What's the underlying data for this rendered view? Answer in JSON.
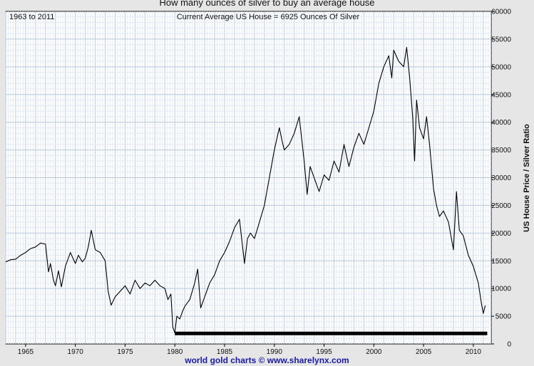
{
  "chart_data": {
    "type": "line",
    "title": "How many ounces of silver to buy an average house",
    "subtitle": "Current Average US House = 6925 Ounces Of Silver",
    "date_range_label": "1963 to 2011",
    "ylabel": "US House Price / Silver Ratio",
    "xlabel": "",
    "footer": "world gold charts © www.sharelynx.com",
    "xlim": [
      1963.0,
      2011.8
    ],
    "ylim": [
      0,
      60000
    ],
    "y_ticks": [
      0,
      5000,
      10000,
      15000,
      20000,
      25000,
      30000,
      35000,
      40000,
      45000,
      50000,
      55000,
      60000
    ],
    "x_ticks": [
      1965,
      1970,
      1975,
      1980,
      1985,
      1990,
      1995,
      2000,
      2005,
      2010
    ],
    "grid": true,
    "line_color": "#000000",
    "baseline": {
      "value": 1900,
      "x_start": 1980.0,
      "x_end": 2011.4,
      "color": "#000000"
    },
    "series": [
      {
        "x": [
          1963.0,
          1963.5,
          1964.0,
          1964.5,
          1965.0,
          1965.5,
          1966.0,
          1966.5,
          1967.0,
          1967.3,
          1967.5,
          1967.8,
          1968.0,
          1968.3,
          1968.6,
          1969.0,
          1969.5,
          1970.0,
          1970.3,
          1970.7,
          1971.0,
          1971.3,
          1971.6,
          1972.0,
          1972.5,
          1973.0,
          1973.3,
          1973.6,
          1974.0,
          1974.5,
          1975.0,
          1975.5,
          1976.0,
          1976.5,
          1977.0,
          1977.5,
          1978.0,
          1978.5,
          1979.0,
          1979.3,
          1979.6,
          1979.8,
          1980.0,
          1980.2,
          1980.5,
          1980.8,
          1981.0,
          1981.5,
          1982.0,
          1982.3,
          1982.6,
          1983.0,
          1983.5,
          1984.0,
          1984.5,
          1985.0,
          1985.5,
          1986.0,
          1986.5,
          1987.0,
          1987.3,
          1987.6,
          1988.0,
          1988.5,
          1989.0,
          1989.5,
          1990.0,
          1990.5,
          1990.8,
          1991.0,
          1991.5,
          1992.0,
          1992.5,
          1993.0,
          1993.3,
          1993.6,
          1994.0,
          1994.5,
          1995.0,
          1995.5,
          1996.0,
          1996.5,
          1997.0,
          1997.5,
          1998.0,
          1998.5,
          1999.0,
          1999.5,
          2000.0,
          2000.5,
          2001.0,
          2001.5,
          2001.8,
          2002.0,
          2002.5,
          2003.0,
          2003.3,
          2003.6,
          2003.9,
          2004.1,
          2004.3,
          2004.6,
          2005.0,
          2005.3,
          2005.6,
          2006.0,
          2006.3,
          2006.6,
          2007.0,
          2007.5,
          2008.0,
          2008.3,
          2008.6,
          2009.0,
          2009.5,
          2010.0,
          2010.5,
          2010.8,
          2011.0,
          2011.2
        ],
        "y": [
          14800,
          15200,
          15300,
          16000,
          16500,
          17200,
          17500,
          18200,
          18000,
          13000,
          14500,
          11500,
          10500,
          13200,
          10300,
          14000,
          16500,
          14500,
          16000,
          14800,
          15500,
          17500,
          20500,
          17000,
          16500,
          15000,
          9500,
          7000,
          8500,
          9500,
          10500,
          9000,
          11500,
          10000,
          11000,
          10500,
          11500,
          10500,
          10000,
          8000,
          9000,
          3000,
          2000,
          5000,
          4500,
          6000,
          6800,
          8000,
          11000,
          13500,
          6500,
          8500,
          11000,
          12500,
          15000,
          16500,
          18500,
          21000,
          22500,
          14500,
          19000,
          20000,
          19000,
          22000,
          25000,
          30000,
          35000,
          39000,
          36500,
          35000,
          36000,
          38000,
          41000,
          33000,
          27000,
          32000,
          30000,
          27500,
          30500,
          29500,
          33000,
          31000,
          36000,
          32000,
          35500,
          38000,
          36000,
          39000,
          42000,
          47000,
          50000,
          52000,
          48000,
          53000,
          51000,
          50000,
          53500,
          48000,
          41000,
          33000,
          44000,
          39000,
          37000,
          41000,
          36000,
          28000,
          25000,
          23000,
          24000,
          22000,
          17000,
          27500,
          20500,
          19500,
          16000,
          14000,
          11000,
          7500,
          5500,
          6925
        ]
      }
    ]
  }
}
